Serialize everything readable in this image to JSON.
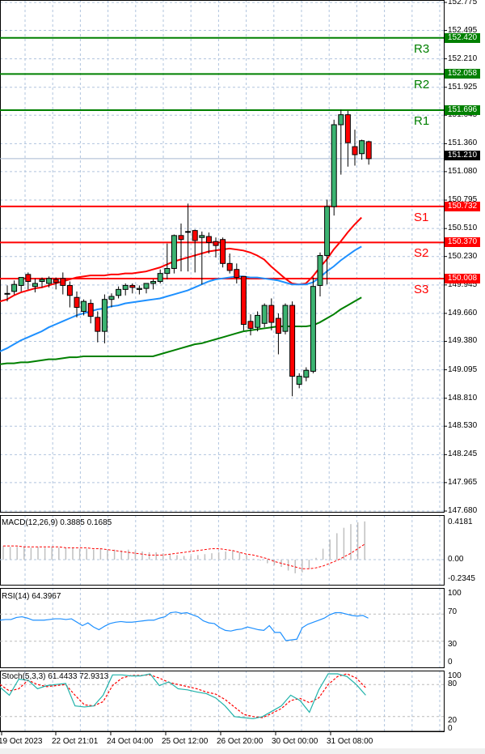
{
  "chart_data": [
    {
      "type": "candlestick",
      "title": "",
      "pane": "price",
      "yaxis_ticks": [
        152.775,
        152.495,
        152.21,
        151.925,
        151.645,
        151.36,
        151.08,
        150.795,
        150.51,
        150.23,
        149.945,
        149.66,
        149.38,
        149.095,
        148.81,
        148.53,
        148.245,
        147.965,
        147.68
      ],
      "ylim": [
        147.68,
        152.8
      ],
      "current_price": 151.21,
      "levels": [
        {
          "name": "R3",
          "value": 152.42,
          "color": "#008000"
        },
        {
          "name": "R2",
          "value": 152.058,
          "color": "#008000"
        },
        {
          "name": "R1",
          "value": 151.696,
          "color": "#008000"
        },
        {
          "name": "S1",
          "value": 150.732,
          "color": "#ff0000"
        },
        {
          "name": "S2",
          "value": 150.37,
          "color": "#ff0000"
        },
        {
          "name": "S3",
          "value": 150.008,
          "color": "#ff0000"
        }
      ],
      "candles": [
        {
          "o": 149.86,
          "h": 149.94,
          "l": 149.78,
          "c": 149.86
        },
        {
          "o": 149.88,
          "h": 149.99,
          "l": 149.85,
          "c": 149.95
        },
        {
          "o": 149.94,
          "h": 150.02,
          "l": 149.88,
          "c": 150.02
        },
        {
          "o": 150.05,
          "h": 150.07,
          "l": 149.9,
          "c": 149.98
        },
        {
          "o": 149.93,
          "h": 150.01,
          "l": 149.87,
          "c": 149.96
        },
        {
          "o": 149.98,
          "h": 150.02,
          "l": 149.92,
          "c": 150.0
        },
        {
          "o": 149.96,
          "h": 150.03,
          "l": 149.92,
          "c": 150.01
        },
        {
          "o": 150.0,
          "h": 150.02,
          "l": 149.9,
          "c": 149.97
        },
        {
          "o": 150.01,
          "h": 150.07,
          "l": 149.85,
          "c": 149.94
        },
        {
          "o": 149.94,
          "h": 149.98,
          "l": 149.72,
          "c": 149.84
        },
        {
          "o": 149.82,
          "h": 149.88,
          "l": 149.62,
          "c": 149.72
        },
        {
          "o": 149.68,
          "h": 149.8,
          "l": 149.64,
          "c": 149.78
        },
        {
          "o": 149.76,
          "h": 149.8,
          "l": 149.56,
          "c": 149.63
        },
        {
          "o": 149.62,
          "h": 149.68,
          "l": 149.37,
          "c": 149.48
        },
        {
          "o": 149.48,
          "h": 149.85,
          "l": 149.36,
          "c": 149.8
        },
        {
          "o": 149.8,
          "h": 149.86,
          "l": 149.72,
          "c": 149.83
        },
        {
          "o": 149.84,
          "h": 149.93,
          "l": 149.81,
          "c": 149.9
        },
        {
          "o": 149.9,
          "h": 149.96,
          "l": 149.84,
          "c": 149.94
        },
        {
          "o": 149.94,
          "h": 149.96,
          "l": 149.86,
          "c": 149.92
        },
        {
          "o": 149.9,
          "h": 149.94,
          "l": 149.85,
          "c": 149.91
        },
        {
          "o": 149.91,
          "h": 149.95,
          "l": 149.86,
          "c": 149.96
        },
        {
          "o": 149.96,
          "h": 150.0,
          "l": 149.9,
          "c": 149.98
        },
        {
          "o": 149.98,
          "h": 150.1,
          "l": 149.96,
          "c": 150.06
        },
        {
          "o": 150.06,
          "h": 150.36,
          "l": 150.0,
          "c": 150.11
        },
        {
          "o": 150.11,
          "h": 150.45,
          "l": 150.06,
          "c": 150.44
        },
        {
          "o": 150.44,
          "h": 150.56,
          "l": 150.08,
          "c": 150.4
        },
        {
          "o": 150.48,
          "h": 150.76,
          "l": 150.08,
          "c": 150.48
        },
        {
          "o": 150.49,
          "h": 150.5,
          "l": 150.07,
          "c": 150.39
        },
        {
          "o": 150.42,
          "h": 150.48,
          "l": 149.95,
          "c": 150.44
        },
        {
          "o": 150.43,
          "h": 150.47,
          "l": 150.26,
          "c": 150.37
        },
        {
          "o": 150.38,
          "h": 150.42,
          "l": 150.22,
          "c": 150.34
        },
        {
          "o": 150.4,
          "h": 150.42,
          "l": 150.12,
          "c": 150.16
        },
        {
          "o": 150.16,
          "h": 150.26,
          "l": 150.06,
          "c": 150.09
        },
        {
          "o": 150.1,
          "h": 150.16,
          "l": 149.96,
          "c": 150.02
        },
        {
          "o": 150.03,
          "h": 150.03,
          "l": 149.49,
          "c": 149.55
        },
        {
          "o": 149.58,
          "h": 149.65,
          "l": 149.44,
          "c": 149.51
        },
        {
          "o": 149.52,
          "h": 149.68,
          "l": 149.48,
          "c": 149.64
        },
        {
          "o": 149.56,
          "h": 149.76,
          "l": 149.52,
          "c": 149.74
        },
        {
          "o": 149.74,
          "h": 149.81,
          "l": 149.49,
          "c": 149.57
        },
        {
          "o": 149.61,
          "h": 149.66,
          "l": 149.25,
          "c": 149.46
        },
        {
          "o": 149.48,
          "h": 149.76,
          "l": 149.45,
          "c": 149.74
        },
        {
          "o": 149.74,
          "h": 149.78,
          "l": 148.83,
          "c": 149.03
        },
        {
          "o": 148.95,
          "h": 149.06,
          "l": 148.91,
          "c": 149.03
        },
        {
          "o": 149.02,
          "h": 149.12,
          "l": 148.98,
          "c": 149.09
        },
        {
          "o": 149.08,
          "h": 150.02,
          "l": 149.06,
          "c": 149.93
        },
        {
          "o": 149.94,
          "h": 150.27,
          "l": 149.83,
          "c": 150.24
        },
        {
          "o": 150.24,
          "h": 150.8,
          "l": 149.95,
          "c": 150.73
        },
        {
          "o": 150.73,
          "h": 151.6,
          "l": 150.64,
          "c": 151.55
        },
        {
          "o": 151.55,
          "h": 151.7,
          "l": 151.05,
          "c": 151.65
        },
        {
          "o": 151.65,
          "h": 151.69,
          "l": 151.13,
          "c": 151.37
        },
        {
          "o": 151.33,
          "h": 151.5,
          "l": 151.14,
          "c": 151.25
        },
        {
          "o": 151.26,
          "h": 151.4,
          "l": 151.2,
          "c": 151.39
        },
        {
          "o": 151.38,
          "h": 151.39,
          "l": 151.15,
          "c": 151.21
        }
      ],
      "moving_averages": [
        {
          "name": "MA fast",
          "color": "#ff0000",
          "values": [
            149.78,
            149.8,
            149.84,
            149.87,
            149.89,
            149.91,
            149.92,
            149.94,
            149.96,
            149.98,
            150.0,
            150.02,
            150.03,
            150.04,
            150.04,
            150.04,
            150.05,
            150.05,
            150.06,
            150.06,
            150.07,
            150.08,
            150.1,
            150.12,
            150.15,
            150.18,
            150.2,
            150.22,
            150.24,
            150.26,
            150.28,
            150.29,
            150.3,
            150.31,
            150.3,
            150.29,
            150.27,
            150.24,
            150.2,
            150.13,
            150.07,
            150.01,
            149.96,
            149.95,
            149.96,
            150.03,
            150.12,
            150.2,
            150.3,
            150.38,
            150.47,
            150.55,
            150.62
          ]
        },
        {
          "name": "MA mid",
          "color": "#1e90ff",
          "values": [
            149.28,
            149.31,
            149.35,
            149.39,
            149.42,
            149.45,
            149.48,
            149.52,
            149.55,
            149.58,
            149.61,
            149.64,
            149.66,
            149.68,
            149.7,
            149.71,
            149.73,
            149.74,
            149.76,
            149.77,
            149.78,
            149.79,
            149.8,
            149.81,
            149.83,
            149.85,
            149.87,
            149.89,
            149.92,
            149.95,
            149.98,
            150.0,
            150.01,
            150.02,
            150.03,
            150.03,
            150.02,
            150.02,
            150.01,
            150.0,
            149.99,
            149.97,
            149.95,
            149.95,
            149.95,
            149.97,
            150.02,
            150.08,
            150.13,
            150.19,
            150.24,
            150.29,
            150.33
          ]
        },
        {
          "name": "MA slow",
          "color": "#008000",
          "values": [
            149.15,
            149.16,
            149.16,
            149.17,
            149.17,
            149.18,
            149.19,
            149.2,
            149.2,
            149.21,
            149.22,
            149.22,
            149.23,
            149.23,
            149.23,
            149.23,
            149.23,
            149.23,
            149.23,
            149.23,
            149.23,
            149.23,
            149.23,
            149.25,
            149.27,
            149.29,
            149.31,
            149.33,
            149.35,
            149.36,
            149.38,
            149.4,
            149.42,
            149.44,
            149.46,
            149.48,
            149.49,
            149.5,
            149.51,
            149.52,
            149.53,
            149.53,
            149.53,
            149.53,
            149.53,
            149.54,
            149.57,
            149.61,
            149.65,
            149.7,
            149.74,
            149.78,
            149.82
          ]
        }
      ]
    },
    {
      "type": "bar",
      "pane": "macd",
      "title": "MACD(12,26,9) 0.3885 0.1685",
      "yaxis_ticks": [
        0.4181,
        0.0,
        -0.2345
      ],
      "ylim": [
        -0.2345,
        0.4181
      ],
      "series": [
        {
          "name": "MACD histogram",
          "color": "#c0c0c0",
          "values": [
            0.15,
            0.14,
            0.14,
            0.14,
            0.13,
            0.14,
            0.13,
            0.14,
            0.13,
            0.13,
            0.13,
            0.12,
            0.12,
            0.11,
            0.12,
            0.11,
            0.11,
            0.1,
            0.11,
            0.1,
            0.09,
            0.08,
            0.08,
            0.07,
            0.06,
            0.05,
            0.04,
            0.04,
            0.05,
            0.06,
            0.07,
            0.08,
            0.09,
            0.1,
            0.08,
            0.05,
            0.01,
            -0.01,
            -0.04,
            -0.06,
            -0.08,
            -0.12,
            -0.15,
            -0.14,
            -0.1,
            0.02,
            0.12,
            0.22,
            0.29,
            0.35,
            0.39,
            0.41,
            0.42
          ]
        },
        {
          "name": "Signal",
          "color": "#ff0000",
          "values": [
            0.15,
            0.15,
            0.15,
            0.14,
            0.14,
            0.14,
            0.14,
            0.14,
            0.14,
            0.13,
            0.13,
            0.13,
            0.13,
            0.12,
            0.12,
            0.11,
            0.1,
            0.09,
            0.08,
            0.07,
            0.06,
            0.05,
            0.05,
            0.05,
            0.06,
            0.07,
            0.08,
            0.09,
            0.1,
            0.11,
            0.12,
            0.12,
            0.11,
            0.1,
            0.08,
            0.06,
            0.05,
            0.03,
            0.01,
            -0.02,
            -0.04,
            -0.06,
            -0.08,
            -0.1,
            -0.1,
            -0.09,
            -0.07,
            -0.04,
            -0.01,
            0.03,
            0.07,
            0.12,
            0.17
          ]
        }
      ]
    },
    {
      "type": "line",
      "pane": "rsi",
      "title": "RSI(14) 64.3967",
      "yaxis_ticks": [
        100,
        70,
        30,
        0
      ],
      "ylim": [
        0,
        100
      ],
      "series": [
        {
          "name": "RSI",
          "color": "#1e90ff",
          "values": [
            61,
            62,
            62,
            65,
            66,
            64,
            61,
            61,
            61,
            62,
            63,
            63,
            62,
            63,
            58,
            53,
            57,
            51,
            47,
            52,
            56,
            58,
            59,
            58,
            58,
            59,
            60,
            61,
            61,
            64,
            66,
            72,
            73,
            71,
            72,
            69,
            66,
            60,
            57,
            56,
            50,
            46,
            45,
            47,
            48,
            51,
            49,
            47,
            46,
            53,
            43,
            43,
            31,
            32,
            33,
            50,
            55,
            58,
            61,
            64,
            69,
            72,
            72,
            70,
            68,
            67,
            68,
            64
          ]
        }
      ]
    },
    {
      "type": "line",
      "pane": "stoch",
      "title": "Stoch(5,3,3) 61.4433 72.9313",
      "yaxis_ticks": [
        100,
        80,
        20,
        0
      ],
      "ylim": [
        0,
        100
      ],
      "series": [
        {
          "name": "%K",
          "color": "#20b2aa",
          "values": [
            75,
            60,
            90,
            88,
            72,
            78,
            80,
            82,
            40,
            38,
            40,
            60,
            98,
            98,
            96,
            96,
            100,
            78,
            85,
            72,
            70,
            66,
            63,
            55,
            40,
            20,
            18,
            16,
            20,
            30,
            40,
            60,
            50,
            28,
            70,
            100,
            100,
            95,
            80,
            60
          ]
        },
        {
          "name": "%D",
          "color": "#ff0000",
          "values": [
            80,
            68,
            72,
            88,
            80,
            76,
            78,
            80,
            60,
            42,
            40,
            48,
            78,
            92,
            97,
            97,
            98,
            92,
            84,
            80,
            76,
            72,
            66,
            62,
            52,
            38,
            24,
            20,
            18,
            26,
            35,
            50,
            54,
            46,
            55,
            80,
            95,
            100,
            92,
            74
          ]
        }
      ]
    }
  ],
  "price_axis": {
    "labels": [
      "152.775",
      "152.495",
      "152.210",
      "151.925",
      "151.645",
      "151.360",
      "151.080",
      "150.795",
      "150.510",
      "150.230",
      "149.945",
      "149.660",
      "149.380",
      "149.095",
      "148.810",
      "148.530",
      "148.245",
      "147.965",
      "147.680"
    ],
    "current_price_tag": "151.210",
    "level_tags": [
      "152.420",
      "152.058",
      "151.696",
      "150.732",
      "150.370",
      "150.008"
    ],
    "level_names": [
      "R3",
      "R2",
      "R1",
      "S1",
      "S2",
      "S3"
    ]
  },
  "macd_axis": {
    "labels": [
      "0.4181",
      "0.00",
      "-0.2345"
    ]
  },
  "rsi_axis": {
    "labels": [
      "100",
      "70",
      "30",
      "0"
    ]
  },
  "stoch_axis": {
    "labels": [
      "100",
      "80",
      "20",
      "0"
    ]
  },
  "time_axis": {
    "labels": [
      "19 Oct 2023",
      "22 Oct 21:01",
      "24 Oct 04:00",
      "25 Oct 12:00",
      "26 Oct 20:00",
      "30 Oct 00:00",
      "31 Oct 08:00"
    ]
  },
  "colors": {
    "bull": "#3cb371",
    "bear": "#ff0000",
    "support": "#ff0000",
    "resistance": "#008000",
    "grid": "#b0c4de"
  }
}
